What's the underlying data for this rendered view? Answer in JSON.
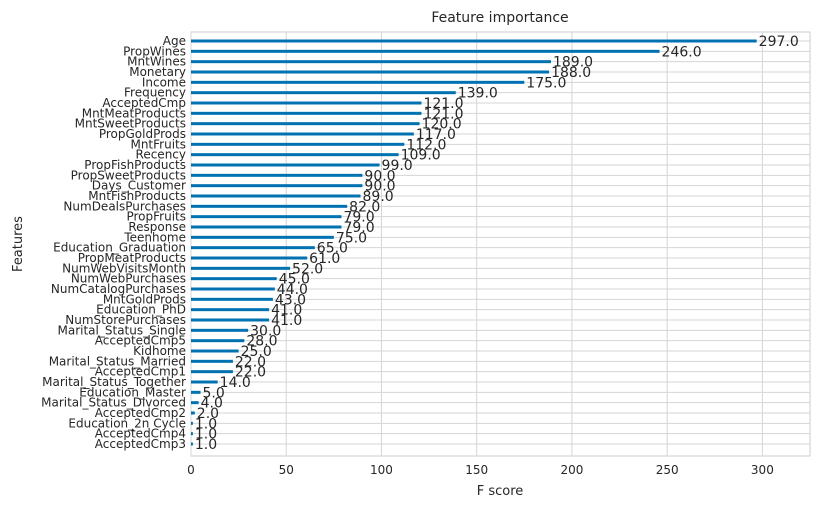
{
  "chart_data": {
    "type": "bar",
    "orientation": "horizontal",
    "title": "Feature importance",
    "xlabel": "F score",
    "ylabel": "Features",
    "xlim": [
      0,
      325
    ],
    "xticks": [
      0,
      50,
      100,
      150,
      200,
      250,
      300
    ],
    "grid": true,
    "bar_color": "#0072b2",
    "categories": [
      "Age",
      "PropWines",
      "MntWines",
      "Monetary",
      "Income",
      "Frequency",
      "AcceptedCmp",
      "MntMeatProducts",
      "MntSweetProducts",
      "PropGoldProds",
      "MntFruits",
      "Recency",
      "PropFishProducts",
      "PropSweetProducts",
      "Days_Customer",
      "MntFishProducts",
      "NumDealsPurchases",
      "PropFruits",
      "Response",
      "Teenhome",
      "Education_Graduation",
      "PropMeatProducts",
      "NumWebVisitsMonth",
      "NumWebPurchases",
      "NumCatalogPurchases",
      "MntGoldProds",
      "Education_PhD",
      "NumStorePurchases",
      "Marital_Status_Single",
      "AcceptedCmp5",
      "Kidhome",
      "Marital_Status_Married",
      "AcceptedCmp1",
      "Marital_Status_Together",
      "Education_Master",
      "Marital_Status_Divorced",
      "AcceptedCmp2",
      "Education_2n Cycle",
      "AcceptedCmp4",
      "AcceptedCmp3"
    ],
    "values": [
      297.0,
      246.0,
      189.0,
      188.0,
      175.0,
      139.0,
      121.0,
      121.0,
      120.0,
      117.0,
      112.0,
      109.0,
      99.0,
      90.0,
      90.0,
      89.0,
      82.0,
      79.0,
      79.0,
      75.0,
      65.0,
      61.0,
      52.0,
      45.0,
      44.0,
      43.0,
      41.0,
      41.0,
      30.0,
      28.0,
      25.0,
      22.0,
      22.0,
      14.0,
      5.0,
      4.0,
      2.0,
      1.0,
      1.0,
      1.0
    ],
    "value_labels": [
      "297.0",
      "246.0",
      "189.0",
      "188.0",
      "175.0",
      "139.0",
      "121.0",
      "121.0",
      "120.0",
      "117.0",
      "112.0",
      "109.0",
      "99.0",
      "90.0",
      "90.0",
      "89.0",
      "82.0",
      "79.0",
      "79.0",
      "75.0",
      "65.0",
      "61.0",
      "52.0",
      "45.0",
      "44.0",
      "43.0",
      "41.0",
      "41.0",
      "30.0",
      "28.0",
      "25.0",
      "22.0",
      "22.0",
      "14.0",
      "5.0",
      "4.0",
      "2.0",
      "1.0",
      "1.0",
      "1.0"
    ]
  }
}
